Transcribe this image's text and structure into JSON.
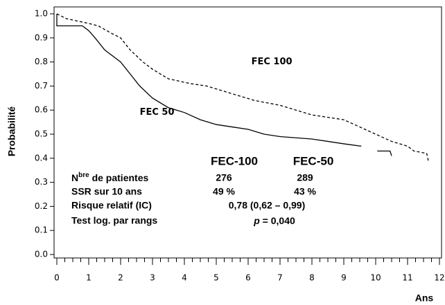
{
  "chart_data": {
    "type": "line",
    "step": true,
    "ylabel": "Probabilité",
    "xlabel": "Ans",
    "xlim": [
      0,
      12
    ],
    "xticks": [
      0,
      1,
      2,
      3,
      4,
      5,
      6,
      7,
      8,
      9,
      10,
      11,
      12
    ],
    "minor_ticks_per_major": 4,
    "ylim": [
      0,
      1
    ],
    "yticks": [
      {
        "value": 0,
        "label": "0.0"
      },
      0.1,
      0.2,
      0.3,
      0.4,
      0.5,
      0.6,
      0.7,
      0.8,
      0.9,
      {
        "value": 1,
        "label": "1.0"
      }
    ],
    "series": [
      {
        "name": "FEC 100",
        "color": "#000000",
        "dash": true,
        "x": [
          0,
          0.3,
          1,
          1.3,
          1.7,
          2,
          2.3,
          2.7,
          3,
          3.5,
          4.2,
          4.7,
          5.2,
          5.7,
          6.2,
          7,
          7.5,
          8,
          8.5,
          9,
          9.5,
          10,
          10.5,
          11,
          11.2,
          11.6,
          11.65
        ],
        "values": [
          1,
          0.98,
          0.96,
          0.95,
          0.92,
          0.9,
          0.85,
          0.8,
          0.77,
          0.73,
          0.71,
          0.7,
          0.68,
          0.66,
          0.64,
          0.62,
          0.6,
          0.58,
          0.57,
          0.56,
          0.53,
          0.5,
          0.47,
          0.45,
          0.43,
          0.42,
          0.39
        ]
      },
      {
        "name": "FEC 50",
        "color": "#000000",
        "dash": false,
        "x": [
          0,
          0,
          0.8,
          1,
          1.2,
          1.5,
          2,
          2.3,
          2.6,
          3,
          3.5,
          4,
          4.5,
          5,
          5.5,
          6,
          6.5,
          7,
          8,
          8.5,
          9,
          9.55,
          9.9,
          10.05,
          10.45,
          10.5
        ],
        "values": [
          1,
          0.95,
          0.95,
          0.93,
          0.9,
          0.85,
          0.8,
          0.75,
          0.7,
          0.65,
          0.61,
          0.59,
          0.56,
          0.54,
          0.53,
          0.52,
          0.5,
          0.49,
          0.48,
          0.47,
          0.46,
          0.45,
          null,
          0.43,
          0.43,
          0.41
        ]
      }
    ],
    "annotations": [
      {
        "text": "FEC 100",
        "x": 6.1,
        "y": 0.8
      },
      {
        "text": "FEC 50",
        "x": 2.6,
        "y": 0.59
      }
    ],
    "summary_table": {
      "columns": [
        "FEC-100",
        "FEC-50"
      ],
      "patients": {
        "label": {
          "main": "N",
          "sup": "bre",
          "rest": " de patientes"
        },
        "values": [
          "276",
          "289"
        ]
      },
      "ssr": {
        "label": "SSR sur 10 ans",
        "values": [
          "49 %",
          "43 %"
        ]
      },
      "risk": {
        "label": "Risque relatif (IC)",
        "value": "0,78 (0,62 – 0,99)"
      },
      "logrank": {
        "label": "Test log. par rangs",
        "p": "p",
        "value": " = 0,040"
      }
    }
  }
}
